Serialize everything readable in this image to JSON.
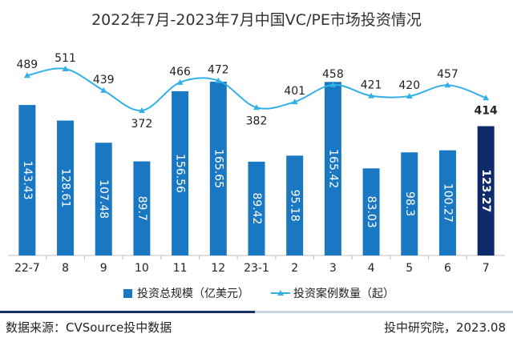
{
  "title": "2022年7月-2023年7月中国VC/PE市场投资情况",
  "chart_data": {
    "type": "bar",
    "categories": [
      "22-7",
      "8",
      "9",
      "10",
      "11",
      "12",
      "23-1",
      "2",
      "3",
      "4",
      "5",
      "6",
      "7"
    ],
    "series": [
      {
        "name": "投资总规模（亿美元）",
        "type": "bar",
        "values": [
          143.43,
          128.61,
          107.48,
          89.7,
          156.56,
          165.65,
          89.42,
          95.18,
          165.42,
          83.03,
          98.3,
          100.27,
          123.27
        ],
        "labels": [
          "143.43",
          "128.61",
          "107.48",
          "89.7",
          "156.56",
          "165.65",
          "89.42",
          "95.18",
          "165.42",
          "83.03",
          "98.3",
          "100.27",
          "123.27"
        ],
        "color": "#1a78c2",
        "highlight_color": "#0e2a6b",
        "highlight_index": 12
      },
      {
        "name": "投资案例数量（起）",
        "type": "line",
        "values": [
          489,
          511,
          439,
          372,
          466,
          472,
          382,
          401,
          458,
          421,
          420,
          457,
          414
        ],
        "labels": [
          "489",
          "511",
          "439",
          "372",
          "466",
          "472",
          "382",
          "401",
          "458",
          "421",
          "420",
          "457",
          "414"
        ],
        "color": "#33b1e6",
        "highlight_index": 12
      }
    ],
    "bar_range": [
      0,
      200
    ],
    "line_range": [
      300,
      560
    ],
    "grid": false,
    "legend_position": "bottom"
  },
  "legend": {
    "bar_label": "投资总规模（亿美元）",
    "line_label": "投资案例数量（起）"
  },
  "footer": {
    "source": "数据来源：CVSource投中数据",
    "credit": "投中研究院，2023.08"
  }
}
